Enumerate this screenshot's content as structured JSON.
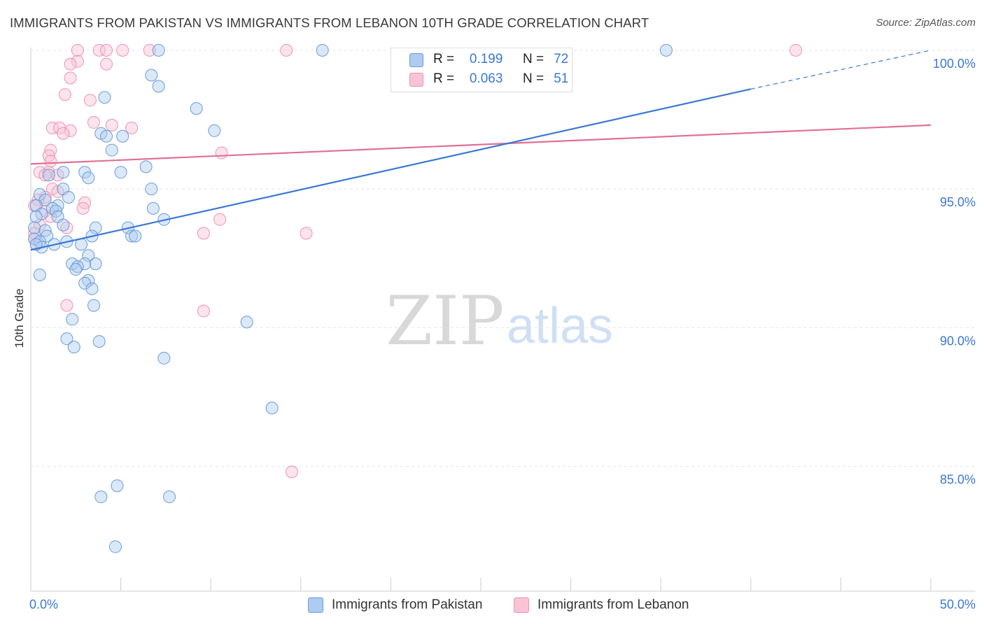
{
  "title": "IMMIGRANTS FROM PAKISTAN VS IMMIGRANTS FROM LEBANON 10TH GRADE CORRELATION CHART",
  "source": "Source: ZipAtlas.com",
  "watermark": {
    "zip": "ZIP",
    "atlas": "atlas"
  },
  "legend": {
    "r_label": "R =",
    "n_label": "N =",
    "pakistan": {
      "r": "0.199",
      "n": "72"
    },
    "lebanon": {
      "r": "0.063",
      "n": "51"
    }
  },
  "colors": {
    "pakistan_fill": "#aecbf0",
    "pakistan_stroke": "#6a9bdc",
    "pakistan_line": "#3a78d4",
    "lebanon_fill": "#f8c4d4",
    "lebanon_stroke": "#ee92b0",
    "lebanon_line": "#e07098",
    "axis_label": "#3a78d4",
    "grid": "#e4e4e4"
  },
  "chart_data": {
    "type": "scatter",
    "title": "IMMIGRANTS FROM PAKISTAN VS IMMIGRANTS FROM LEBANON 10TH GRADE CORRELATION CHART",
    "xlabel": "",
    "ylabel": "10th Grade",
    "xlim": [
      0,
      50
    ],
    "ylim": [
      80.5,
      100.5
    ],
    "x_tick_labels": [
      "0.0%",
      "50.0%"
    ],
    "y_ticks": [
      85,
      90,
      95,
      100
    ],
    "y_tick_labels": [
      "85.0%",
      "90.0%",
      "95.0%",
      "100.0%"
    ],
    "grid": "horizontal dashed",
    "legend_position": "top-center",
    "series": [
      {
        "name": "Immigrants from Pakistan",
        "color": "#6a9bdc",
        "trend": {
          "x": [
            0,
            40,
            50
          ],
          "y": [
            92.8,
            98.6,
            100.0
          ],
          "solid_until_x": 40
        },
        "points": [
          [
            7.1,
            100.0
          ],
          [
            16.2,
            100.0
          ],
          [
            35.3,
            100.0
          ],
          [
            6.7,
            99.1
          ],
          [
            7.1,
            98.7
          ],
          [
            4.1,
            98.3
          ],
          [
            9.2,
            97.9
          ],
          [
            10.2,
            97.1
          ],
          [
            3.9,
            97.0
          ],
          [
            4.2,
            96.9
          ],
          [
            5.1,
            96.9
          ],
          [
            4.5,
            96.4
          ],
          [
            6.4,
            95.8
          ],
          [
            1.8,
            95.6
          ],
          [
            3.0,
            95.6
          ],
          [
            5.0,
            95.6
          ],
          [
            3.2,
            95.4
          ],
          [
            1.0,
            95.5
          ],
          [
            6.7,
            95.0
          ],
          [
            1.8,
            95.0
          ],
          [
            0.5,
            94.8
          ],
          [
            2.1,
            94.7
          ],
          [
            0.8,
            94.6
          ],
          [
            1.5,
            94.4
          ],
          [
            0.3,
            94.4
          ],
          [
            1.2,
            94.3
          ],
          [
            1.4,
            94.2
          ],
          [
            6.8,
            94.3
          ],
          [
            0.6,
            94.1
          ],
          [
            0.3,
            94.0
          ],
          [
            1.5,
            94.0
          ],
          [
            7.4,
            93.9
          ],
          [
            1.8,
            93.7
          ],
          [
            3.6,
            93.6
          ],
          [
            5.4,
            93.6
          ],
          [
            0.2,
            93.6
          ],
          [
            0.8,
            93.5
          ],
          [
            3.4,
            93.3
          ],
          [
            5.6,
            93.3
          ],
          [
            5.8,
            93.3
          ],
          [
            0.9,
            93.3
          ],
          [
            0.2,
            93.2
          ],
          [
            0.5,
            93.1
          ],
          [
            2.0,
            93.1
          ],
          [
            2.8,
            93.0
          ],
          [
            1.3,
            93.0
          ],
          [
            0.6,
            92.9
          ],
          [
            0.3,
            93.0
          ],
          [
            3.2,
            92.6
          ],
          [
            2.3,
            92.3
          ],
          [
            3.6,
            92.3
          ],
          [
            3.0,
            92.3
          ],
          [
            2.6,
            92.2
          ],
          [
            2.5,
            92.1
          ],
          [
            0.5,
            91.9
          ],
          [
            3.2,
            91.7
          ],
          [
            3.0,
            91.6
          ],
          [
            3.4,
            91.4
          ],
          [
            3.5,
            90.8
          ],
          [
            2.3,
            90.3
          ],
          [
            12.0,
            90.2
          ],
          [
            2.0,
            89.6
          ],
          [
            3.8,
            89.5
          ],
          [
            2.4,
            89.3
          ],
          [
            7.4,
            88.9
          ],
          [
            13.4,
            87.1
          ],
          [
            4.8,
            84.3
          ],
          [
            3.9,
            83.9
          ],
          [
            7.7,
            83.9
          ],
          [
            4.7,
            82.1
          ]
        ]
      },
      {
        "name": "Immigrants from Lebanon",
        "color": "#ee92b0",
        "trend": {
          "x": [
            0,
            50
          ],
          "y": [
            95.9,
            97.3
          ]
        },
        "points": [
          [
            2.6,
            100.0
          ],
          [
            3.8,
            100.0
          ],
          [
            4.2,
            100.0
          ],
          [
            5.1,
            100.0
          ],
          [
            6.6,
            100.0
          ],
          [
            14.2,
            100.0
          ],
          [
            42.5,
            100.0
          ],
          [
            2.6,
            99.6
          ],
          [
            4.2,
            99.5
          ],
          [
            2.2,
            99.5
          ],
          [
            2.2,
            99.0
          ],
          [
            1.9,
            98.4
          ],
          [
            3.3,
            98.2
          ],
          [
            3.5,
            97.4
          ],
          [
            4.5,
            97.3
          ],
          [
            5.6,
            97.2
          ],
          [
            1.2,
            97.2
          ],
          [
            2.2,
            97.1
          ],
          [
            1.6,
            97.2
          ],
          [
            1.8,
            97.0
          ],
          [
            1.1,
            96.4
          ],
          [
            10.6,
            96.3
          ],
          [
            1.0,
            96.2
          ],
          [
            1.1,
            96.0
          ],
          [
            0.5,
            95.6
          ],
          [
            1.0,
            95.6
          ],
          [
            1.5,
            95.5
          ],
          [
            0.8,
            95.5
          ],
          [
            1.2,
            95.0
          ],
          [
            1.5,
            94.9
          ],
          [
            0.8,
            94.7
          ],
          [
            0.4,
            94.6
          ],
          [
            3.0,
            94.5
          ],
          [
            0.2,
            94.4
          ],
          [
            2.9,
            94.3
          ],
          [
            0.8,
            94.2
          ],
          [
            1.1,
            94.0
          ],
          [
            10.5,
            93.9
          ],
          [
            0.5,
            93.7
          ],
          [
            2.0,
            93.6
          ],
          [
            0.2,
            93.4
          ],
          [
            9.6,
            93.4
          ],
          [
            15.3,
            93.4
          ],
          [
            0.2,
            93.2
          ],
          [
            0.3,
            93.0
          ],
          [
            2.0,
            90.8
          ],
          [
            9.6,
            90.6
          ],
          [
            14.5,
            84.8
          ]
        ]
      }
    ]
  },
  "bottom_legend": {
    "pakistan": "Immigrants from Pakistan",
    "lebanon": "Immigrants from Lebanon"
  }
}
